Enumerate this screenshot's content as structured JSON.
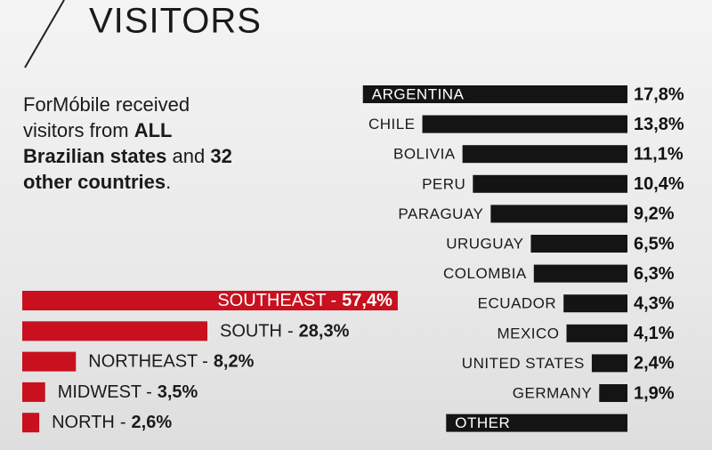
{
  "title": "VISITORS",
  "intro": [
    "ForMóbile received visitors from ",
    "ALL Brazilian states",
    " and ",
    "32 other countries",
    "."
  ],
  "chart_data": [
    {
      "type": "hbar",
      "color": "#141414",
      "categories": [
        "ARGENTINA",
        "CHILE",
        "BOLIVIA",
        "PERU",
        "PARAGUAY",
        "URUGUAY",
        "COLOMBIA",
        "ECUADOR",
        "MEXICO",
        "UNITED STATES",
        "GERMANY",
        "OTHER"
      ],
      "values": [
        17.8,
        13.8,
        11.1,
        10.4,
        9.2,
        6.5,
        6.3,
        4.3,
        4.1,
        2.4,
        1.9,
        12.2
      ],
      "value_labels": [
        "17,8%",
        "13,8%",
        "11,1%",
        "10,4%",
        "9,2%",
        "6,5%",
        "6,3%",
        "4,3%",
        "4,1%",
        "2,4%",
        "1,9%",
        null
      ]
    },
    {
      "type": "hbar",
      "color": "#c8101e",
      "label_separator": "-",
      "categories": [
        "SOUTHEAST",
        "SOUTH",
        "NORTHEAST",
        "MIDWEST",
        "NORTH"
      ],
      "values": [
        57.4,
        28.3,
        8.2,
        3.5,
        2.6
      ],
      "value_labels": [
        "57,4%",
        "28,3%",
        "8,2%",
        "3,5%",
        "2,6%"
      ]
    }
  ]
}
